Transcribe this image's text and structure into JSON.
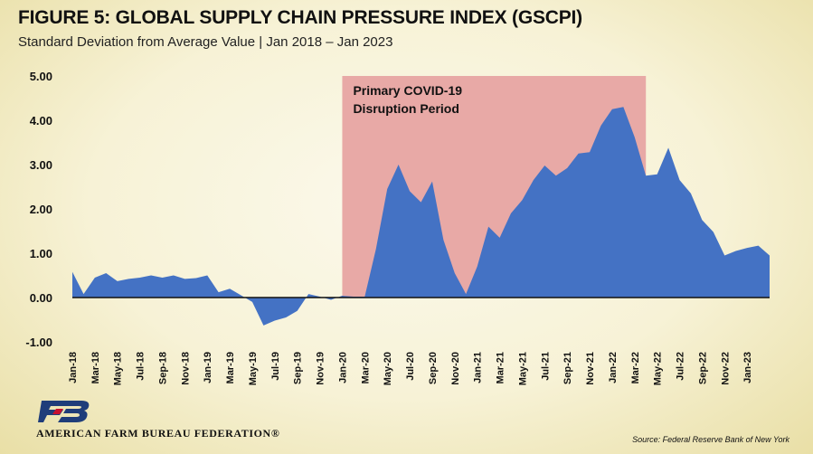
{
  "header": {
    "title": "FIGURE 5: GLOBAL SUPPLY CHAIN PRESSURE INDEX (GSCPI)",
    "subtitle": "Standard Deviation from Average Value | Jan 2018 – Jan 2023"
  },
  "footer": {
    "org": "AMERICAN FARM BUREAU FEDERATION®",
    "source": "Source: Federal Reserve Bank of New York"
  },
  "colors": {
    "area": "#4472c4",
    "shade": "#e8a9a6",
    "logo_blue": "#1f3d7a"
  },
  "chart_data": {
    "type": "area",
    "title": "FIGURE 5: GLOBAL SUPPLY CHAIN PRESSURE INDEX (GSCPI)",
    "ylabel": "",
    "xlabel": "",
    "ylim": [
      -1.0,
      5.0
    ],
    "yticks": [
      "5.00",
      "4.00",
      "3.00",
      "2.00",
      "1.00",
      "0.00",
      "-1.00"
    ],
    "ytick_values": [
      5,
      4,
      3,
      2,
      1,
      0,
      -1
    ],
    "grid": false,
    "tick_labels": [
      "Jan-18",
      "Mar-18",
      "May-18",
      "Jul-18",
      "Sep-18",
      "Nov-18",
      "Jan-19",
      "Mar-19",
      "May-19",
      "Jul-19",
      "Sep-19",
      "Nov-19",
      "Jan-20",
      "Mar-20",
      "May-20",
      "Jul-20",
      "Sep-20",
      "Nov-20",
      "Jan-21",
      "Mar-21",
      "May-21",
      "Jul-21",
      "Sep-21",
      "Nov-21",
      "Jan-22",
      "Mar-22",
      "May-22",
      "Jul-22",
      "Sep-22",
      "Nov-22",
      "Jan-23"
    ],
    "x_start": "Jan-18",
    "x_end": "Jan-23",
    "series": [
      {
        "values": [
          0.58,
          0.08,
          0.45,
          0.55,
          0.37,
          0.42,
          0.45,
          0.5,
          0.45,
          0.5,
          0.42,
          0.44,
          0.5,
          0.12,
          0.2,
          0.05,
          -0.1,
          -0.63,
          -0.52,
          -0.45,
          -0.3,
          0.08,
          0.02,
          -0.05,
          0.04,
          0.02,
          0.02,
          1.1,
          2.45,
          3.0,
          2.4,
          2.15,
          2.62,
          1.3,
          0.55,
          0.08,
          0.7,
          1.6,
          1.35,
          1.9,
          2.2,
          2.65,
          2.98,
          2.75,
          2.92,
          3.25,
          3.28,
          3.88,
          4.25,
          4.3,
          3.62,
          2.75,
          2.78,
          3.38,
          2.65,
          2.35,
          1.75,
          1.48,
          0.95,
          1.05,
          1.12,
          1.17,
          0.95
        ]
      }
    ],
    "shaded_region": {
      "from": "Jan-20",
      "to": "Apr-22",
      "label_line1": "Primary COVID-19",
      "label_line2": "Disruption Period"
    }
  }
}
